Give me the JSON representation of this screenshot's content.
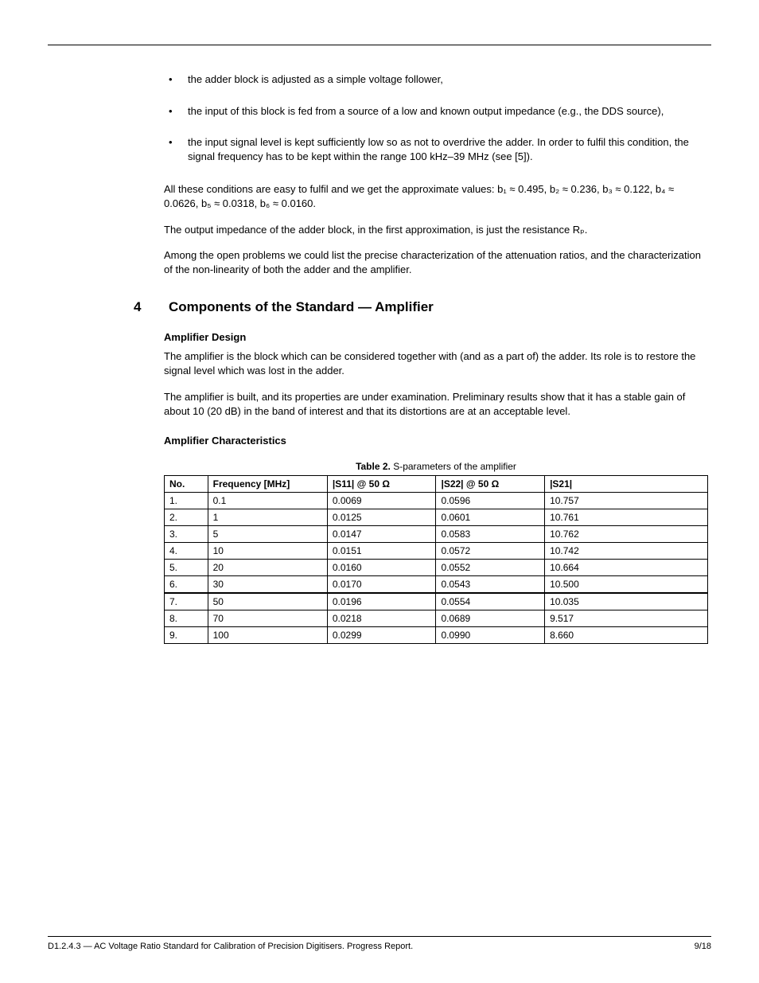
{
  "bullets": [
    "the adder block is adjusted as a simple voltage follower,",
    "the input of this block is fed from a source of a low and known output impedance (e.g., the DDS source),",
    "the input signal level is kept sufficiently low so as not to overdrive the adder. In order to fulfil this condition, the signal frequency has to be kept within the range 100 kHz–39 MHz (see [5])."
  ],
  "paragraphs": {
    "p1": "All these conditions are easy to fulfil and we get the approximate values: b₁ ≈ 0.495, b₂ ≈ 0.236, b₃ ≈ 0.122, b₄ ≈ 0.0626, b₅ ≈ 0.0318, b₆ ≈ 0.0160.",
    "p2": "The output impedance of the adder block, in the first approximation, is just the resistance Rₚ.",
    "p3": "Among the open problems we could list the precise characterization of the attenuation ratios, and the characterization of the non-linearity of both the adder and the amplifier."
  },
  "section": {
    "number": "4",
    "title": "Components of the Standard — Amplifier"
  },
  "amplifier": {
    "design_heading": "Amplifier Design",
    "p1": "The amplifier is the block which can be considered together with (and as a part of) the adder. Its role is to restore the signal level which was lost in the adder.",
    "p2": "The amplifier is built, and its properties are under examination. Preliminary results show that it has a stable gain of about 10 (20 dB) in the band of interest and that its distortions are at an acceptable level.",
    "char_heading": "Amplifier Characteristics"
  },
  "table": {
    "caption_bold": "Table 2.",
    "caption_rest": " S-parameters of the amplifier",
    "columns": [
      "No.",
      "Frequency [MHz]",
      "|S11| @ 50 Ω",
      "|S22| @ 50 Ω",
      "|S21|"
    ],
    "rows": [
      [
        "1.",
        "0.1",
        "0.0069",
        "0.0596",
        "10.757"
      ],
      [
        "2.",
        "1",
        "0.0125",
        "0.0601",
        "10.761"
      ],
      [
        "3.",
        "5",
        "0.0147",
        "0.0583",
        "10.762"
      ],
      [
        "4.",
        "10",
        "0.0151",
        "0.0572",
        "10.742"
      ],
      [
        "5.",
        "20",
        "0.0160",
        "0.0552",
        "10.664"
      ],
      [
        "6.",
        "30",
        "0.0170",
        "0.0543",
        "10.500"
      ],
      [
        "7.",
        "50",
        "0.0196",
        "0.0554",
        "10.035"
      ],
      [
        "8.",
        "70",
        "0.0218",
        "0.0689",
        "9.517"
      ],
      [
        "9.",
        "100",
        "0.0299",
        "0.0990",
        "8.660"
      ]
    ],
    "heavy_after_row_index": 5
  },
  "footer": {
    "left": "D1.2.4.3 — AC Voltage Ratio Standard for Calibration of Precision Digitisers. Progress Report.",
    "right": "9/18"
  }
}
